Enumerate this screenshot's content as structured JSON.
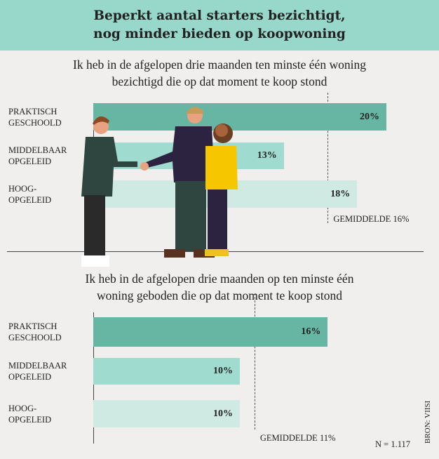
{
  "title": [
    "Beperkt aantal starters bezichtigt,",
    "nog minder bieden op koopwoning"
  ],
  "colors": [
    "#66b6a3",
    "#9fdccf",
    "#cfeae3"
  ],
  "chart_data": [
    {
      "type": "bar",
      "orientation": "horizontal",
      "title": [
        "Ik heb in de afgelopen drie maanden ten minste één woning",
        "bezichtigd die op dat moment te koop stond"
      ],
      "categories": [
        [
          "PRAKTISCH",
          "GESCHOOLD"
        ],
        [
          "MIDDELBAAR",
          "OPGELEID"
        ],
        [
          "HOOG-",
          "OPGELEID"
        ]
      ],
      "values": [
        20,
        13,
        18
      ],
      "labels": [
        "20%",
        "13%",
        "18%"
      ],
      "average": 16,
      "average_label": "GEMIDDELDE 16%"
    },
    {
      "type": "bar",
      "orientation": "horizontal",
      "title": [
        "Ik heb in de afgelopen drie maanden op ten minste één",
        "woning geboden die op dat moment te koop stond"
      ],
      "categories": [
        [
          "PRAKTISCH",
          "GESCHOOLD"
        ],
        [
          "MIDDELBAAR",
          "OPGELEID"
        ],
        [
          "HOOG-",
          "OPGELEID"
        ]
      ],
      "values": [
        16,
        10,
        10
      ],
      "labels": [
        "16%",
        "10%",
        "10%"
      ],
      "average": 11,
      "average_label": "GEMIDDELDE 11%"
    }
  ],
  "footer": {
    "n": "N = 1.117",
    "source": "BRON: VIISI"
  }
}
